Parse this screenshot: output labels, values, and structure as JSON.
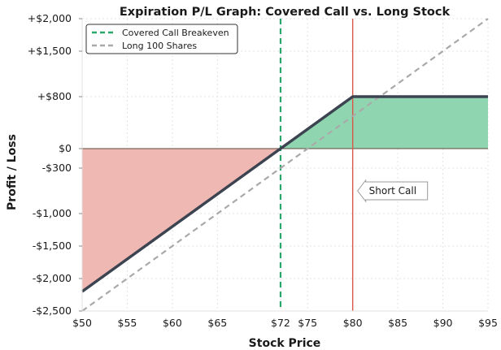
{
  "chart_data": {
    "type": "line",
    "title": "Expiration P/L Graph: Covered Call vs. Long Stock",
    "xlabel": "Stock Price",
    "ylabel": "Profit / Loss",
    "xlim": [
      50,
      95
    ],
    "ylim": [
      -2500,
      2000
    ],
    "grid": true,
    "legend_position": "top-left",
    "x_ticks": [
      {
        "value": 50,
        "label": "$50"
      },
      {
        "value": 55,
        "label": "$55"
      },
      {
        "value": 60,
        "label": "$60"
      },
      {
        "value": 65,
        "label": "$65"
      },
      {
        "value": 72,
        "label": "$72"
      },
      {
        "value": 75,
        "label": "$75"
      },
      {
        "value": 80,
        "label": "$80"
      },
      {
        "value": 85,
        "label": "$85"
      },
      {
        "value": 90,
        "label": "$90"
      },
      {
        "value": 95,
        "label": "$95"
      }
    ],
    "y_ticks": [
      {
        "value": 2000,
        "label": "+$2,000"
      },
      {
        "value": 1500,
        "label": "+$1,500"
      },
      {
        "value": 800,
        "label": "+$800"
      },
      {
        "value": 0,
        "label": "$0"
      },
      {
        "value": -300,
        "label": "-$300"
      },
      {
        "value": -1000,
        "label": "-$1,000"
      },
      {
        "value": -1500,
        "label": "-$1,500"
      },
      {
        "value": -2000,
        "label": "-$2,000"
      },
      {
        "value": -2500,
        "label": "-$2,500"
      }
    ],
    "series": [
      {
        "id": "covered_call",
        "points": [
          [
            50,
            -2200
          ],
          [
            80,
            800
          ],
          [
            95,
            800
          ]
        ],
        "color": "#3d4451"
      },
      {
        "id": "long_stock",
        "name": "Long 100 Shares",
        "points": [
          [
            50,
            -2500
          ],
          [
            95,
            2000
          ]
        ],
        "color": "#a9a9a9"
      }
    ],
    "breakeven": {
      "name": "Covered Call Breakeven",
      "x": 72,
      "color": "#27a86a"
    },
    "strike": {
      "x": 80,
      "color": "#d9574a"
    },
    "loss_fill_color": "#f0b8b3",
    "profit_fill_color": "#8fd6b0",
    "annotation": {
      "text": "Short Call",
      "x": 80,
      "y": -650
    }
  }
}
